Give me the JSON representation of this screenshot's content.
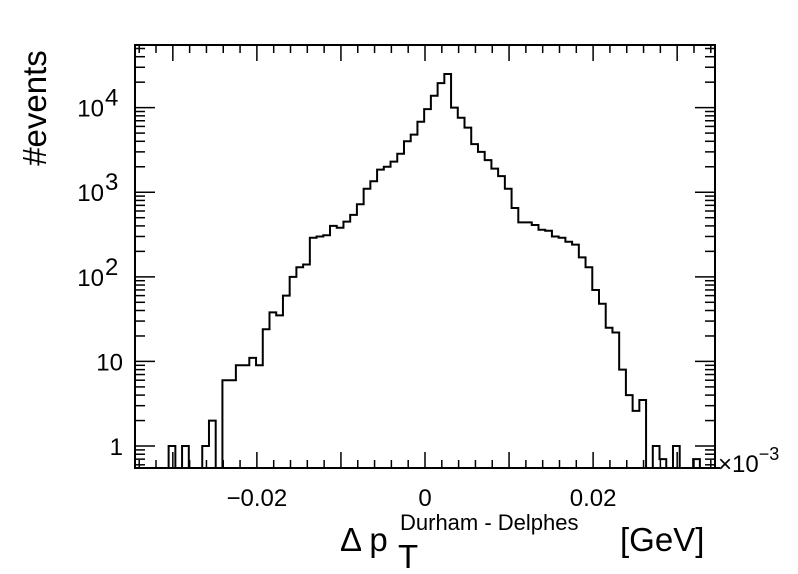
{
  "chart_data": {
    "type": "histogram",
    "title": "",
    "xlabel": "Δ p_T^{Durham - Delphes} [GeV]",
    "xlabel_parts": {
      "delta": "Δ p",
      "sub": "T",
      "sup": "Durham - Delphes",
      "unit": "[GeV]"
    },
    "ylabel": "#events",
    "x_scale_label": "×10",
    "x_scale_exponent": "−3",
    "xlim": [
      -0.0345,
      0.0345
    ],
    "ylim": [
      0.55,
      55000
    ],
    "y_scale": "log",
    "grid": false,
    "legend": "none",
    "line_color": "#000000",
    "x_ticks": [
      {
        "value": -0.02,
        "label": "−0.02"
      },
      {
        "value": 0,
        "label": "0"
      },
      {
        "value": 0.02,
        "label": "0.02"
      }
    ],
    "y_ticks": [
      {
        "value": 1,
        "label": "1"
      },
      {
        "value": 10,
        "label": "10"
      },
      {
        "value": 100,
        "label": "10",
        "exp": "2"
      },
      {
        "value": 1000,
        "label": "10",
        "exp": "3"
      },
      {
        "value": 10000,
        "label": "10",
        "exp": "4"
      }
    ],
    "bin_start": -0.0345,
    "bin_width": 0.0008,
    "values": [
      0,
      0,
      0,
      0,
      0,
      1,
      0,
      1,
      0,
      0,
      1,
      2,
      0,
      6,
      6,
      9,
      9,
      11,
      9,
      24,
      38,
      35,
      60,
      100,
      130,
      140,
      290,
      300,
      310,
      400,
      380,
      450,
      540,
      720,
      1100,
      1350,
      1850,
      2000,
      2300,
      2850,
      4000,
      4800,
      6800,
      9600,
      13800,
      19500,
      25000,
      10000,
      7600,
      5800,
      3700,
      3000,
      2400,
      1900,
      1550,
      1100,
      650,
      440,
      440,
      410,
      360,
      350,
      300,
      290,
      260,
      240,
      170,
      130,
      70,
      48,
      25,
      22,
      8,
      4,
      2.6,
      3.5,
      0,
      1,
      0.7,
      0,
      1,
      0,
      0,
      0.7,
      0,
      0,
      0
    ]
  }
}
